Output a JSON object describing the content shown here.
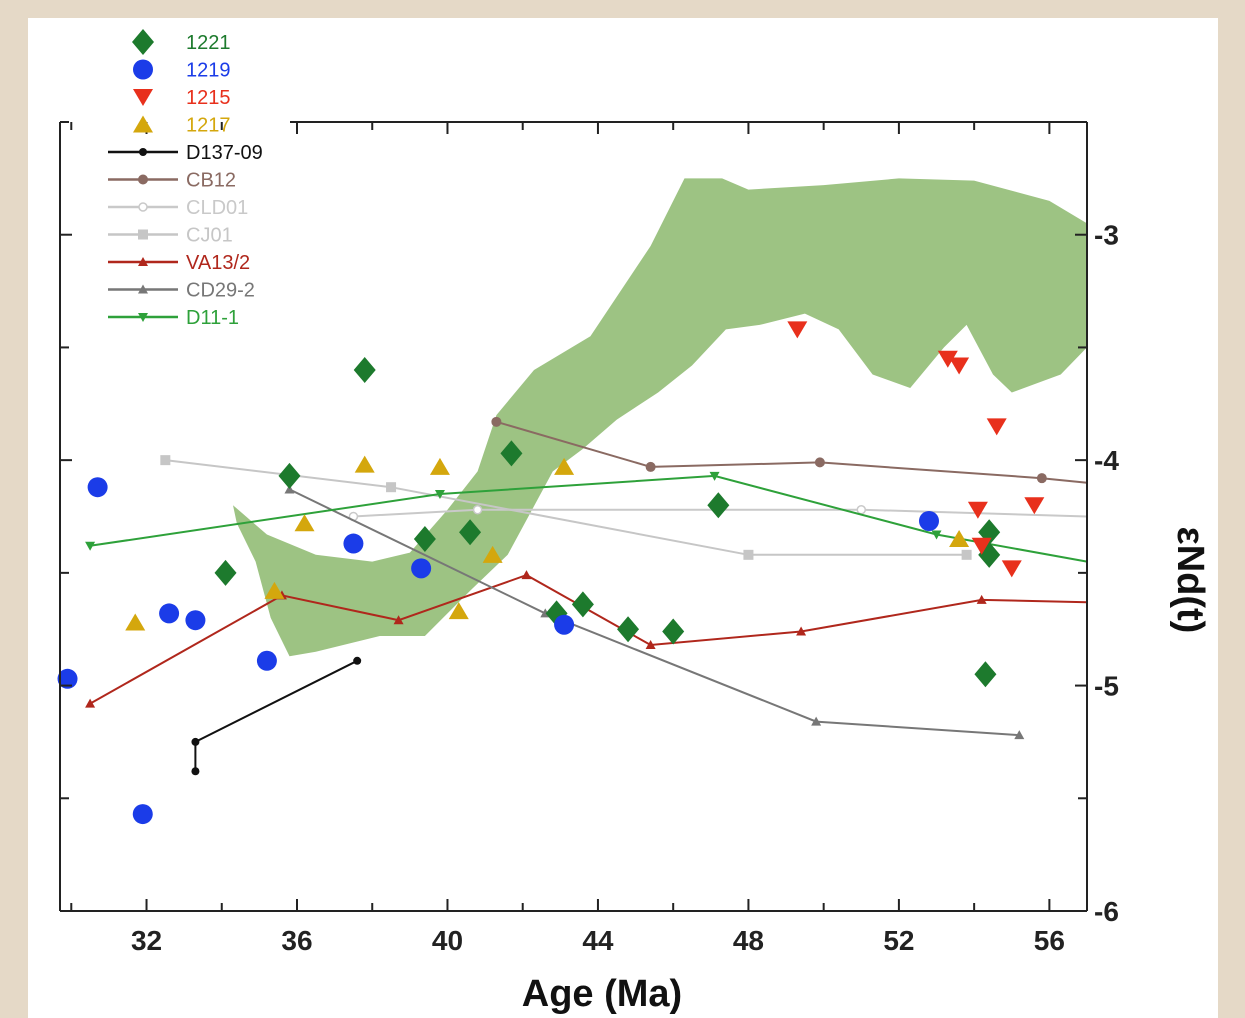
{
  "chart_data": {
    "type": "scatter",
    "title": "",
    "xlabel": "Age (Ma)",
    "ylabel": "εNd(t)",
    "xlim": [
      29.7,
      57
    ],
    "ylim": [
      -6,
      -2.5
    ],
    "y_inverted": true,
    "x_ticks": [
      32,
      36,
      40,
      44,
      48,
      52,
      56
    ],
    "y_ticks": [
      -3,
      -4,
      -5,
      -6
    ],
    "y_axis_side": "right",
    "grid": false,
    "legend_position": "top-left",
    "band": {
      "color": "#9dc383",
      "upper": [
        [
          34.3,
          -4.2
        ],
        [
          35.2,
          -4.33
        ],
        [
          36.5,
          -4.42
        ],
        [
          38,
          -4.45
        ],
        [
          39,
          -4.41
        ],
        [
          40,
          -4.22
        ],
        [
          40.8,
          -4.05
        ],
        [
          41.3,
          -3.8
        ],
        [
          42.3,
          -3.6
        ],
        [
          43.8,
          -3.45
        ],
        [
          44.6,
          -3.25
        ],
        [
          45.4,
          -3.05
        ],
        [
          46.3,
          -2.75
        ],
        [
          47.3,
          -2.75
        ],
        [
          48,
          -2.8
        ],
        [
          50,
          -2.78
        ],
        [
          52,
          -2.75
        ],
        [
          54,
          -2.76
        ],
        [
          56,
          -2.85
        ],
        [
          57,
          -2.95
        ]
      ],
      "lower": [
        [
          57,
          -3.5
        ],
        [
          56.3,
          -3.62
        ],
        [
          55,
          -3.7
        ],
        [
          54.5,
          -3.62
        ],
        [
          53.8,
          -3.4
        ],
        [
          53.2,
          -3.5
        ],
        [
          52.3,
          -3.68
        ],
        [
          51.3,
          -3.62
        ],
        [
          50.4,
          -3.42
        ],
        [
          49.5,
          -3.35
        ],
        [
          48.3,
          -3.4
        ],
        [
          47.4,
          -3.42
        ],
        [
          46.5,
          -3.58
        ],
        [
          45.6,
          -3.7
        ],
        [
          44.5,
          -3.82
        ],
        [
          43.6,
          -3.95
        ],
        [
          42.8,
          -4.05
        ],
        [
          41.6,
          -4.42
        ],
        [
          40.6,
          -4.58
        ],
        [
          39.4,
          -4.78
        ],
        [
          38.2,
          -4.78
        ],
        [
          36.5,
          -4.85
        ],
        [
          35.8,
          -4.87
        ],
        [
          35.3,
          -4.7
        ],
        [
          34.9,
          -4.45
        ],
        [
          34.4,
          -4.28
        ]
      ]
    },
    "series": [
      {
        "name": "1221",
        "color": "#1d7a2d",
        "marker": "diamond",
        "line": false,
        "points": [
          [
            34.1,
            -4.5
          ],
          [
            35.8,
            -4.07
          ],
          [
            37.8,
            -3.6
          ],
          [
            39.4,
            -4.35
          ],
          [
            40.6,
            -4.32
          ],
          [
            41.7,
            -3.97
          ],
          [
            42.9,
            -4.68
          ],
          [
            43.6,
            -4.64
          ],
          [
            44.8,
            -4.75
          ],
          [
            46,
            -4.76
          ],
          [
            47.2,
            -4.2
          ],
          [
            54.3,
            -4.95
          ],
          [
            54.4,
            -4.32
          ],
          [
            54.4,
            -4.42
          ]
        ]
      },
      {
        "name": "1219",
        "color": "#1b3ce8",
        "marker": "circle",
        "line": false,
        "points": [
          [
            29.9,
            -4.97
          ],
          [
            30.7,
            -4.12
          ],
          [
            31.9,
            -5.57
          ],
          [
            32.6,
            -4.68
          ],
          [
            33.3,
            -4.71
          ],
          [
            35.2,
            -4.89
          ],
          [
            37.5,
            -4.37
          ],
          [
            39.3,
            -4.48
          ],
          [
            43.1,
            -4.73
          ],
          [
            52.8,
            -4.27
          ]
        ]
      },
      {
        "name": "1215",
        "color": "#e8301c",
        "marker": "triangle-down",
        "line": false,
        "points": [
          [
            49.3,
            -3.42
          ],
          [
            53.3,
            -3.55
          ],
          [
            53.6,
            -3.58
          ],
          [
            54.1,
            -4.22
          ],
          [
            54.2,
            -4.38
          ],
          [
            54.6,
            -3.85
          ],
          [
            55,
            -4.48
          ],
          [
            55.6,
            -4.2
          ]
        ]
      },
      {
        "name": "1217",
        "color": "#d4a70d",
        "marker": "triangle-up",
        "line": false,
        "points": [
          [
            31.7,
            -4.72
          ],
          [
            35.4,
            -4.58
          ],
          [
            36.2,
            -4.28
          ],
          [
            37.8,
            -4.02
          ],
          [
            39.8,
            -4.03
          ],
          [
            40.3,
            -4.67
          ],
          [
            41.2,
            -4.42
          ],
          [
            43.1,
            -4.03
          ],
          [
            53.6,
            -4.35
          ]
        ]
      },
      {
        "name": "D137-09",
        "color": "#111111",
        "marker": "dot",
        "line": true,
        "points": [
          [
            33.3,
            -5.38
          ],
          [
            33.3,
            -5.25
          ],
          [
            37.6,
            -4.89
          ]
        ]
      },
      {
        "name": "CB12",
        "color": "#8a6a62",
        "marker": "circle-small",
        "line": true,
        "points": [
          [
            41.3,
            -3.83
          ],
          [
            45.4,
            -4.03
          ],
          [
            49.9,
            -4.01
          ],
          [
            55.8,
            -4.08
          ],
          [
            57,
            -4.1
          ]
        ]
      },
      {
        "name": "CLD01",
        "color": "#c9c9c9",
        "marker": "circle-open",
        "line": true,
        "points": [
          [
            37.5,
            -4.25
          ],
          [
            40.8,
            -4.22
          ],
          [
            51,
            -4.22
          ],
          [
            57,
            -4.25
          ]
        ]
      },
      {
        "name": "CJ01",
        "color": "#c6c6c6",
        "marker": "square",
        "line": true,
        "points": [
          [
            32.5,
            -4.0
          ],
          [
            38.5,
            -4.12
          ],
          [
            48,
            -4.42
          ],
          [
            53.8,
            -4.42
          ]
        ]
      },
      {
        "name": "VA13/2",
        "color": "#b0271c",
        "marker": "triangle-up-small",
        "line": true,
        "points": [
          [
            30.5,
            -5.08
          ],
          [
            35.6,
            -4.6
          ],
          [
            38.7,
            -4.71
          ],
          [
            42.1,
            -4.51
          ],
          [
            45.4,
            -4.82
          ],
          [
            49.4,
            -4.76
          ],
          [
            54.2,
            -4.62
          ],
          [
            57,
            -4.63
          ]
        ]
      },
      {
        "name": "CD29-2",
        "color": "#777777",
        "marker": "triangle-up-small",
        "line": true,
        "points": [
          [
            35.8,
            -4.13
          ],
          [
            42.6,
            -4.68
          ],
          [
            49.8,
            -5.16
          ],
          [
            55.2,
            -5.22
          ]
        ]
      },
      {
        "name": "D11-1",
        "color": "#2ea13a",
        "marker": "triangle-down-small",
        "line": true,
        "points": [
          [
            30.5,
            -4.38
          ],
          [
            39.8,
            -4.15
          ],
          [
            47.1,
            -4.07
          ],
          [
            53,
            -4.33
          ],
          [
            57,
            -4.45
          ]
        ]
      }
    ]
  }
}
